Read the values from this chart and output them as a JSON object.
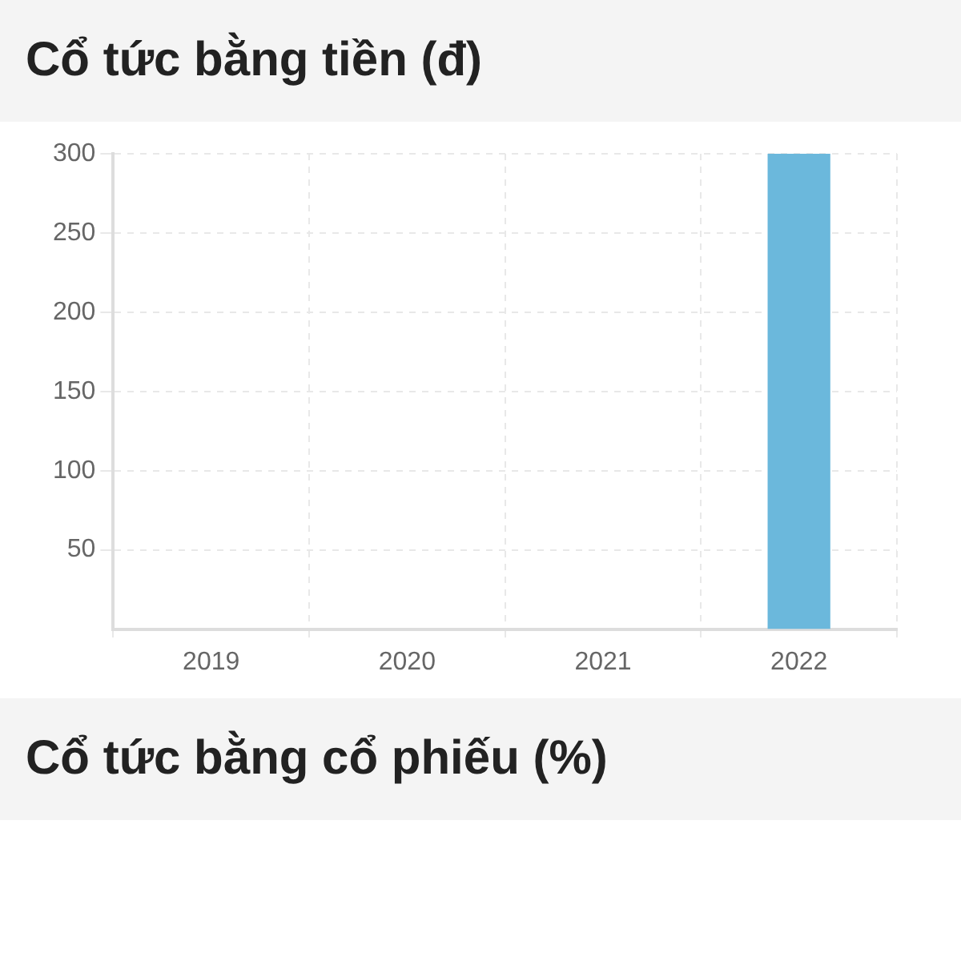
{
  "chart_data": [
    {
      "type": "bar",
      "title": "Cổ tức bằng tiền (đ)",
      "categories": [
        "2019",
        "2020",
        "2021",
        "2022"
      ],
      "values": [
        null,
        null,
        null,
        300
      ],
      "color": "#6bb8dc",
      "ylim": [
        0,
        300
      ],
      "yticks": [
        50,
        100,
        150,
        200,
        250,
        300
      ],
      "grid": true
    },
    {
      "type": "other",
      "title": "Cổ tức bằng cổ phiếu (%)"
    }
  ]
}
